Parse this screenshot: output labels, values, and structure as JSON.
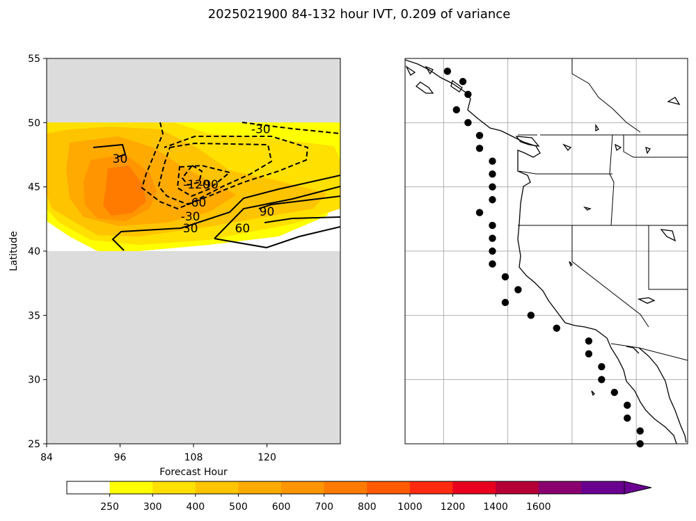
{
  "figure": {
    "title": "2025021900 84-132 hour IVT, 0.209 of variance"
  },
  "chart_data": [
    {
      "type": "contour",
      "xlabel": "Forecast Hour",
      "ylabel": "Latitude",
      "xlim": [
        84,
        132
      ],
      "ylim": [
        25,
        55
      ],
      "xticks": [
        "84",
        "96",
        "108",
        "120"
      ],
      "yticks": [
        "25",
        "30",
        "35",
        "40",
        "45",
        "50",
        "55"
      ],
      "data_lat_range": [
        40,
        50
      ],
      "background_color": "#dcdcdc",
      "filled_levels": [
        250,
        300,
        400,
        500,
        600,
        700
      ],
      "filled_colors": [
        "#ffff00",
        "#ffe000",
        "#ffc400",
        "#ffaa00",
        "#ff9500",
        "#ff7b00"
      ],
      "contour_labels": [
        {
          "text": "-30",
          "x": 119,
          "y": 49.5
        },
        {
          "text": "30",
          "x": 96,
          "y": 47.2
        },
        {
          "text": "-120",
          "x": 108.5,
          "y": 45.2
        },
        {
          "text": "-90",
          "x": 110.5,
          "y": 45.2
        },
        {
          "text": "-60",
          "x": 108.5,
          "y": 43.8
        },
        {
          "text": "-30",
          "x": 107.5,
          "y": 42.7
        },
        {
          "text": "30",
          "x": 107.5,
          "y": 41.8
        },
        {
          "text": "60",
          "x": 116,
          "y": 41.8
        },
        {
          "text": "90",
          "x": 120,
          "y": 43.1
        }
      ]
    },
    {
      "type": "map",
      "grid": true,
      "region": "US West Coast and Baja California",
      "points": [
        [
          -125.2,
          54.0
        ],
        [
          -124.0,
          53.2
        ],
        [
          -123.6,
          52.2
        ],
        [
          -124.5,
          51.0
        ],
        [
          -123.6,
          50.0
        ],
        [
          -122.7,
          49.0
        ],
        [
          -122.7,
          48.0
        ],
        [
          -121.7,
          47.0
        ],
        [
          -121.7,
          46.0
        ],
        [
          -121.7,
          45.0
        ],
        [
          -121.7,
          44.0
        ],
        [
          -122.7,
          43.0
        ],
        [
          -121.7,
          42.0
        ],
        [
          -121.7,
          41.0
        ],
        [
          -121.7,
          40.0
        ],
        [
          -121.7,
          39.0
        ],
        [
          -120.7,
          38.0
        ],
        [
          -119.7,
          37.0
        ],
        [
          -120.7,
          36.0
        ],
        [
          -118.7,
          35.0
        ],
        [
          -116.7,
          34.0
        ],
        [
          -114.2,
          33.0
        ],
        [
          -114.2,
          32.0
        ],
        [
          -113.2,
          31.0
        ],
        [
          -113.2,
          30.0
        ],
        [
          -112.2,
          29.0
        ],
        [
          -111.2,
          28.0
        ],
        [
          -111.2,
          27.0
        ],
        [
          -110.2,
          26.0
        ],
        [
          -110.2,
          25.0
        ]
      ]
    }
  ],
  "colorbar": {
    "tick_labels": [
      "250",
      "300",
      "400",
      "500",
      "600",
      "700",
      "800",
      "1000",
      "1200",
      "1400",
      "1600"
    ],
    "colors": [
      "#ffffff",
      "#ffff00",
      "#ffe000",
      "#ffc400",
      "#ffaa00",
      "#ff9500",
      "#ff7b00",
      "#ff5a00",
      "#ff2a10",
      "#e8001e",
      "#b40036",
      "#8a006e",
      "#6a0090"
    ]
  }
}
